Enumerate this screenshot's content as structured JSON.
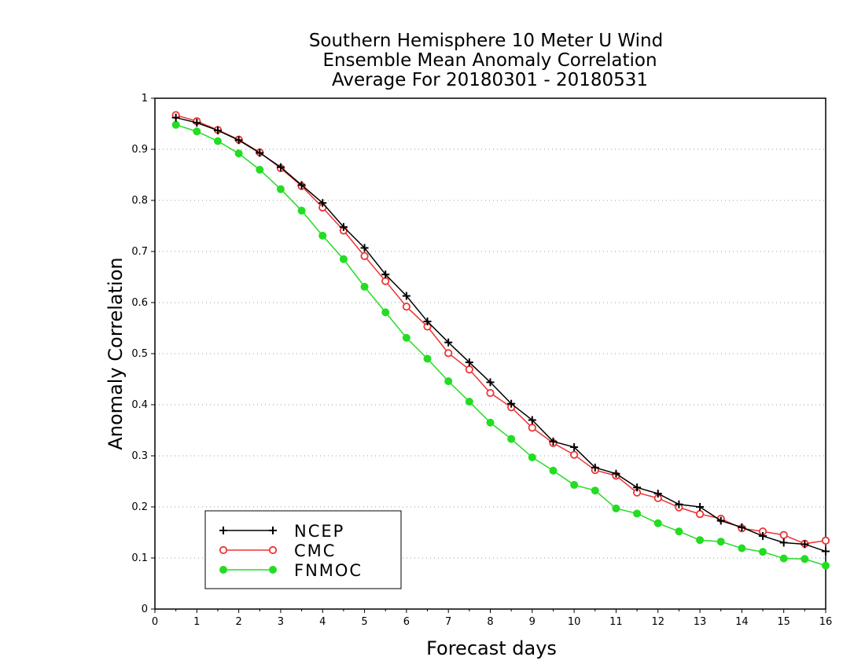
{
  "chart_data": {
    "type": "line",
    "title_lines": [
      "Southern Hemisphere 10 Meter U Wind",
      "Ensemble Mean Anomaly Correlation",
      "Average For 20180301 - 20180531"
    ],
    "xlabel": "Forecast days",
    "ylabel": "Anomaly Correlation",
    "xlim": [
      0,
      16
    ],
    "ylim": [
      0,
      1
    ],
    "x_ticks": [
      "0",
      "1",
      "2",
      "3",
      "4",
      "5",
      "6",
      "7",
      "8",
      "9",
      "10",
      "11",
      "12",
      "13",
      "14",
      "15",
      "16"
    ],
    "y_ticks": [
      "0",
      "0.1",
      "0.2",
      "0.3",
      "0.4",
      "0.5",
      "0.6",
      "0.7",
      "0.8",
      "0.9",
      "1"
    ],
    "grid": "horizontal dotted",
    "legend_position": "bottom-left",
    "x": [
      0.5,
      1,
      1.5,
      2,
      2.5,
      3,
      3.5,
      4,
      4.5,
      5,
      5.5,
      6,
      6.5,
      7,
      7.5,
      8,
      8.5,
      9,
      9.5,
      10,
      10.5,
      11,
      11.5,
      12,
      12.5,
      13,
      13.5,
      14,
      14.5,
      15,
      15.5,
      16
    ],
    "series": [
      {
        "name": "NCEP",
        "color": "#000000",
        "marker": "plus",
        "values": [
          0.962,
          0.952,
          0.937,
          0.918,
          0.893,
          0.865,
          0.83,
          0.795,
          0.748,
          0.707,
          0.655,
          0.613,
          0.563,
          0.522,
          0.483,
          0.444,
          0.402,
          0.37,
          0.328,
          0.317,
          0.277,
          0.265,
          0.238,
          0.226,
          0.205,
          0.2,
          0.173,
          0.16,
          0.143,
          0.13,
          0.127,
          0.113
        ]
      },
      {
        "name": "CMC",
        "color": "#ee3333",
        "marker": "open-circle",
        "values": [
          0.967,
          0.955,
          0.938,
          0.919,
          0.894,
          0.863,
          0.828,
          0.786,
          0.741,
          0.691,
          0.642,
          0.592,
          0.553,
          0.501,
          0.469,
          0.423,
          0.395,
          0.355,
          0.325,
          0.302,
          0.272,
          0.261,
          0.228,
          0.217,
          0.199,
          0.186,
          0.177,
          0.158,
          0.152,
          0.145,
          0.128,
          0.134
        ]
      },
      {
        "name": "FNMOC",
        "color": "#22dd22",
        "marker": "filled-circle",
        "values": [
          0.948,
          0.935,
          0.916,
          0.892,
          0.86,
          0.822,
          0.78,
          0.731,
          0.685,
          0.631,
          0.581,
          0.531,
          0.49,
          0.446,
          0.406,
          0.365,
          0.333,
          0.297,
          0.271,
          0.243,
          0.232,
          0.197,
          0.187,
          0.168,
          0.152,
          0.135,
          0.132,
          0.119,
          0.112,
          0.099,
          0.098,
          0.085
        ]
      }
    ]
  }
}
